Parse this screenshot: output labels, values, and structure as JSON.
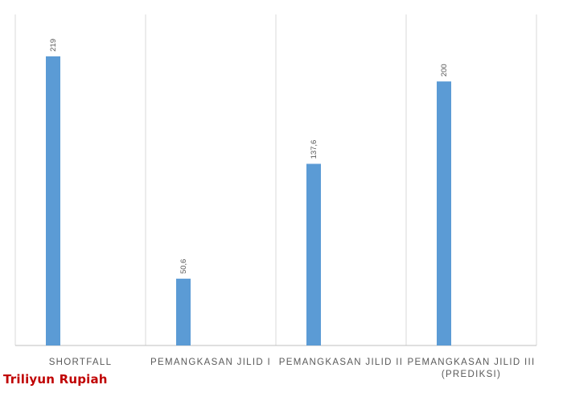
{
  "chart_data": {
    "type": "bar",
    "categories": [
      [
        "SHORTFALL"
      ],
      [
        "PEMANGKASAN JILID I"
      ],
      [
        "PEMANGKASAN JILID II"
      ],
      [
        "PEMANGKASAN JILID III",
        "(PREDIKSI)"
      ]
    ],
    "values": [
      219,
      50.6,
      137.6,
      200
    ],
    "data_labels": [
      "219",
      "50,6",
      "137,6",
      "200"
    ],
    "ylim": [
      0,
      219
    ],
    "grid": "vertical-category-separators",
    "legend": "none",
    "unit_label": "Triliyun Rupiah",
    "colors": {
      "bar": "#5b9bd5",
      "grid": "#d9d9d9",
      "axis": "#bfbfbf",
      "text": "#595959",
      "unit": "#c00000"
    }
  }
}
